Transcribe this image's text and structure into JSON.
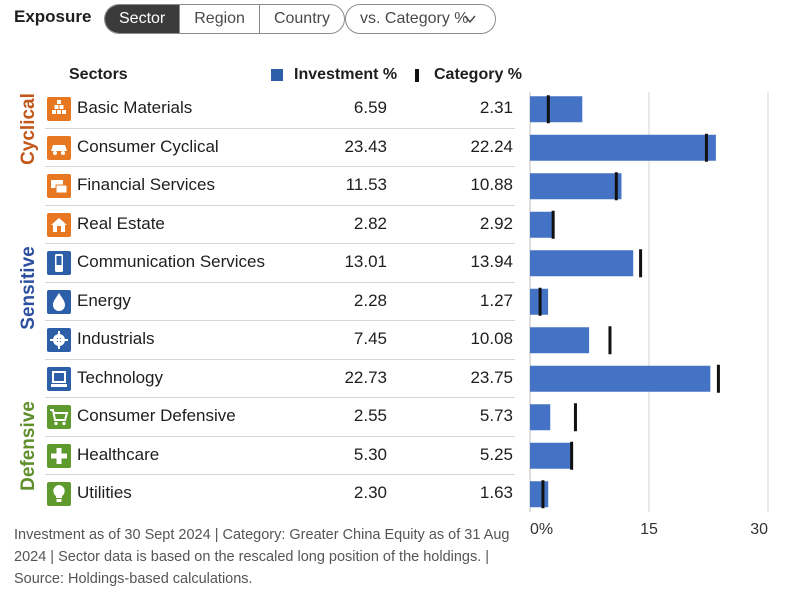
{
  "header": {
    "title": "Exposure",
    "tabs": [
      {
        "label": "Sector",
        "active": true
      },
      {
        "label": "Region",
        "active": false
      },
      {
        "label": "Country",
        "active": false
      }
    ],
    "compare_select": {
      "value": "vs. Category %"
    }
  },
  "table": {
    "col_sectors": "Sectors",
    "col_investment": "Investment  %",
    "col_category": "Category  %"
  },
  "groups": [
    {
      "label": "Cyclical",
      "color": "#c2571a"
    },
    {
      "label": "Sensitive",
      "color": "#2d4fa0"
    },
    {
      "label": "Defensive",
      "color": "#5f8f2b"
    }
  ],
  "rows": [
    {
      "name": "Basic Materials",
      "investment": "6.59",
      "category": "2.31",
      "icon": "basic-materials-icon",
      "icon_color": "#e87722"
    },
    {
      "name": "Consumer Cyclical",
      "investment": "23.43",
      "category": "22.24",
      "icon": "consumer-cyclical-icon",
      "icon_color": "#e87722"
    },
    {
      "name": "Financial Services",
      "investment": "11.53",
      "category": "10.88",
      "icon": "financial-services-icon",
      "icon_color": "#e87722"
    },
    {
      "name": "Real Estate",
      "investment": "2.82",
      "category": "2.92",
      "icon": "real-estate-icon",
      "icon_color": "#e87722"
    },
    {
      "name": "Communication Services",
      "investment": "13.01",
      "category": "13.94",
      "icon": "communication-services-icon",
      "icon_color": "#2d5ea8"
    },
    {
      "name": "Energy",
      "investment": "2.28",
      "category": "1.27",
      "icon": "energy-icon",
      "icon_color": "#2d5ea8"
    },
    {
      "name": "Industrials",
      "investment": "7.45",
      "category": "10.08",
      "icon": "industrials-icon",
      "icon_color": "#2d5ea8"
    },
    {
      "name": "Technology",
      "investment": "22.73",
      "category": "23.75",
      "icon": "technology-icon",
      "icon_color": "#2d5ea8"
    },
    {
      "name": "Consumer Defensive",
      "investment": "2.55",
      "category": "5.73",
      "icon": "consumer-defensive-icon",
      "icon_color": "#5f9a2e"
    },
    {
      "name": "Healthcare",
      "investment": "5.30",
      "category": "5.25",
      "icon": "healthcare-icon",
      "icon_color": "#5f9a2e"
    },
    {
      "name": "Utilities",
      "investment": "2.30",
      "category": "1.63",
      "icon": "utilities-icon",
      "icon_color": "#5f9a2e"
    }
  ],
  "footnote": "Investment as of 30 Sept 2024 | Category: Greater China Equity as of 31 Aug 2024 | Sector data is based on the rescaled long position of the holdings. | Source: Holdings-based calculations.",
  "chart_data": {
    "type": "bar",
    "orientation": "horizontal",
    "categories": [
      "Basic Materials",
      "Consumer Cyclical",
      "Financial Services",
      "Real Estate",
      "Communication Services",
      "Energy",
      "Industrials",
      "Technology",
      "Consumer Defensive",
      "Healthcare",
      "Utilities"
    ],
    "series": [
      {
        "name": "Investment %",
        "style": "bar",
        "color": "#4472c4",
        "values": [
          6.59,
          23.43,
          11.53,
          2.82,
          13.01,
          2.28,
          7.45,
          22.73,
          2.55,
          5.3,
          2.3
        ]
      },
      {
        "name": "Category %",
        "style": "marker",
        "color": "#000000",
        "values": [
          2.31,
          22.24,
          10.88,
          2.92,
          13.94,
          1.27,
          10.08,
          23.75,
          5.73,
          5.25,
          1.63
        ]
      }
    ],
    "xlim": [
      0,
      30
    ],
    "xticks": [
      "0%",
      "15",
      "30"
    ],
    "grid": true,
    "legend": "top"
  }
}
